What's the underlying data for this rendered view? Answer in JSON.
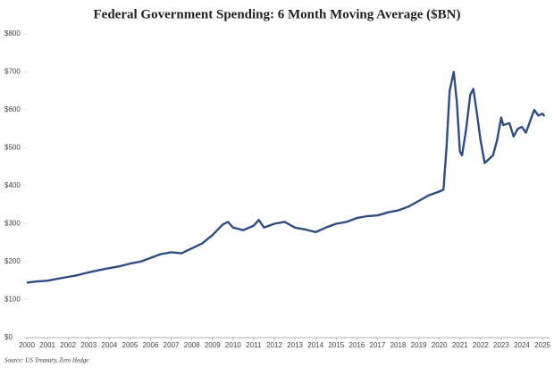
{
  "chart_data": {
    "type": "line",
    "title": "Federal Government Spending: 6 Month Moving Average ($BN)",
    "source": "Source: US Treasury, Zero Hedge",
    "x": [
      2000.0,
      2000.5,
      2001.0,
      2001.5,
      2002.0,
      2002.5,
      2003.0,
      2003.5,
      2004.0,
      2004.5,
      2005.0,
      2005.5,
      2006.0,
      2006.5,
      2007.0,
      2007.5,
      2008.0,
      2008.5,
      2009.0,
      2009.5,
      2009.75,
      2010.0,
      2010.5,
      2011.0,
      2011.25,
      2011.5,
      2012.0,
      2012.5,
      2013.0,
      2013.5,
      2014.0,
      2014.5,
      2015.0,
      2015.5,
      2016.0,
      2016.5,
      2017.0,
      2017.5,
      2018.0,
      2018.5,
      2019.0,
      2019.5,
      2020.0,
      2020.2,
      2020.35,
      2020.5,
      2020.7,
      2020.85,
      2021.0,
      2021.1,
      2021.3,
      2021.5,
      2021.65,
      2021.8,
      2022.0,
      2022.2,
      2022.4,
      2022.6,
      2022.8,
      2023.0,
      2023.1,
      2023.4,
      2023.6,
      2023.8,
      2024.0,
      2024.2,
      2024.4,
      2024.6,
      2024.8,
      2025.0,
      2025.1
    ],
    "series": [
      {
        "name": "Federal Government Spending",
        "color": "#2e4d84",
        "values": [
          145,
          148,
          150,
          155,
          160,
          165,
          172,
          178,
          183,
          188,
          195,
          200,
          210,
          220,
          225,
          222,
          235,
          248,
          270,
          298,
          305,
          290,
          283,
          295,
          310,
          290,
          300,
          305,
          290,
          285,
          278,
          290,
          300,
          305,
          315,
          320,
          322,
          330,
          335,
          345,
          360,
          375,
          385,
          390,
          500,
          650,
          700,
          620,
          490,
          480,
          550,
          640,
          655,
          600,
          520,
          460,
          470,
          480,
          520,
          580,
          560,
          565,
          530,
          550,
          555,
          540,
          570,
          600,
          585,
          590,
          583
        ]
      }
    ],
    "xlim": [
      2000,
      2025.3
    ],
    "xticks": [
      2000,
      2001,
      2002,
      2003,
      2004,
      2005,
      2006,
      2007,
      2008,
      2009,
      2010,
      2011,
      2012,
      2013,
      2014,
      2015,
      2016,
      2017,
      2018,
      2019,
      2020,
      2021,
      2022,
      2023,
      2024,
      2025
    ],
    "ylim": [
      0,
      800
    ],
    "yticks": [
      {
        "value": 0,
        "label": "$0"
      },
      {
        "value": 100,
        "label": "$100"
      },
      {
        "value": 200,
        "label": "$200"
      },
      {
        "value": 300,
        "label": "$300"
      },
      {
        "value": 400,
        "label": "$400"
      },
      {
        "value": 500,
        "label": "$500"
      },
      {
        "value": 600,
        "label": "$600"
      },
      {
        "value": 700,
        "label": "$700"
      },
      {
        "value": 800,
        "label": "$800"
      }
    ],
    "grid": false
  }
}
